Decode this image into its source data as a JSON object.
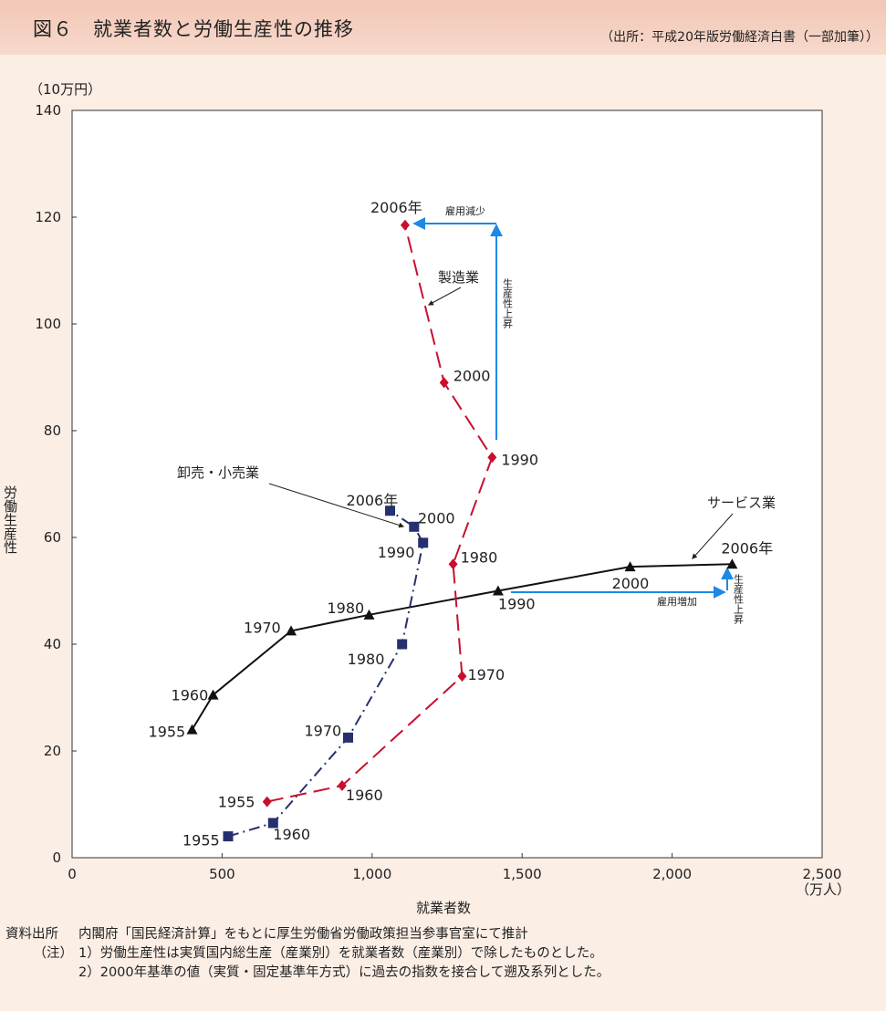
{
  "header": {
    "title": "図６　就業者数と労働生産性の推移",
    "source": "（出所：平成20年版労働経済白書（一部加筆））"
  },
  "chart_data": {
    "type": "line",
    "x_unit": "（万人）",
    "y_unit": "（10万円）",
    "xlabel": "就業者数",
    "ylabel": "労働生産性",
    "xlim": [
      0,
      2500
    ],
    "ylim": [
      0,
      140
    ],
    "xticks": [
      0,
      500,
      1000,
      1500,
      2000,
      2500
    ],
    "xtick_labels": [
      "0",
      "500",
      "1,000",
      "1,500",
      "2,000",
      "2,500"
    ],
    "yticks": [
      0,
      20,
      40,
      60,
      80,
      100,
      120,
      140
    ],
    "ytick_labels": [
      "0",
      "20",
      "40",
      "60",
      "80",
      "100",
      "120",
      "140"
    ],
    "series": [
      {
        "name": "サービス業",
        "color": "#111111",
        "marker": "triangle",
        "style": "solid",
        "points": [
          {
            "x": 400,
            "y": 24,
            "label": "1955"
          },
          {
            "x": 470,
            "y": 30.5,
            "label": "1960"
          },
          {
            "x": 730,
            "y": 42.5,
            "label": "1970"
          },
          {
            "x": 990,
            "y": 45.5,
            "label": "1980"
          },
          {
            "x": 1420,
            "y": 50,
            "label": "1990"
          },
          {
            "x": 1860,
            "y": 54.5,
            "label": "2000"
          },
          {
            "x": 2200,
            "y": 55,
            "label": "2006年"
          }
        ]
      },
      {
        "name": "卸売・小売業",
        "color": "#27306e",
        "marker": "square",
        "style": "dashdot",
        "points": [
          {
            "x": 520,
            "y": 4,
            "label": "1955"
          },
          {
            "x": 670,
            "y": 6.5,
            "label": "1960"
          },
          {
            "x": 920,
            "y": 22.5,
            "label": "1970"
          },
          {
            "x": 1100,
            "y": 40,
            "label": "1980"
          },
          {
            "x": 1170,
            "y": 59,
            "label": "1990"
          },
          {
            "x": 1140,
            "y": 62,
            "label": "2000"
          },
          {
            "x": 1060,
            "y": 65,
            "label": "2006年"
          }
        ]
      },
      {
        "name": "製造業",
        "color": "#c8102e",
        "marker": "diamond",
        "style": "dashed",
        "points": [
          {
            "x": 650,
            "y": 10.5,
            "label": "1955"
          },
          {
            "x": 900,
            "y": 13.5,
            "label": "1960"
          },
          {
            "x": 1300,
            "y": 34,
            "label": "1970"
          },
          {
            "x": 1270,
            "y": 55,
            "label": "1980"
          },
          {
            "x": 1400,
            "y": 75,
            "label": "1990"
          },
          {
            "x": 1240,
            "y": 89,
            "label": "2000"
          },
          {
            "x": 1110,
            "y": 118.5,
            "label": "2006年"
          }
        ]
      }
    ],
    "annotations": {
      "employment_decrease": "雇用減少",
      "productivity_up_1": "生産性上昇",
      "employment_increase": "雇用増加",
      "productivity_up_2": "生産性上昇"
    }
  },
  "notes": {
    "source_label": "資料出所",
    "source_text": "内閣府「国民経済計算」をもとに厚生労働省労働政策担当参事官室にて推計",
    "note_label": "（注）",
    "note1": "1）労働生産性は実質国内総生産（産業別）を就業者数（産業別）で除したものとした。",
    "note2": "2）2000年基準の値（実質・固定基準年方式）に過去の指数を接合して遡及系列とした。"
  }
}
